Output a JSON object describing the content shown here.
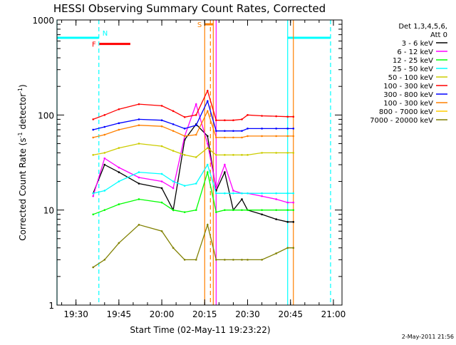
{
  "chart_data": {
    "type": "line",
    "title": "HESSI Observing Summary Count Rates, Corrected",
    "xlabel": "Start Time (02-May-11 19:23:22)",
    "ylabel": "Corrected Count Rate (s⁻¹ detector⁻¹)",
    "ylabel_main": "Corrected Count Rate (s",
    "ylabel_mid": " detector",
    "ylabel_end": ")",
    "ylabel_sup": "-1",
    "yscale": "log",
    "xlim": [
      "19:23:22",
      "21:03:00"
    ],
    "ylim": [
      1,
      1000
    ],
    "x_ticks": [
      "19:30",
      "19:45",
      "20:00",
      "20:15",
      "20:30",
      "20:45",
      "21:00"
    ],
    "y_ticks": [
      {
        "value": 1,
        "label": "1"
      },
      {
        "value": 10,
        "label": "10"
      },
      {
        "value": 100,
        "label": "100"
      },
      {
        "value": 1000,
        "label": "1000"
      }
    ],
    "legend_header": [
      "Det 1,3,4,5,6,",
      "Att 0"
    ],
    "legend_position": "right",
    "footer_date": "2-May-2011 21:56",
    "series": [
      {
        "name": "3 - 6 keV",
        "color": "#000000",
        "x": [
          "19:36",
          "19:40",
          "19:45",
          "19:52",
          "20:00",
          "20:04",
          "20:08",
          "20:12",
          "20:16",
          "20:19",
          "20:22",
          "20:25",
          "20:28",
          "20:30",
          "20:35",
          "20:40",
          "20:44",
          "20:46"
        ],
        "y": [
          15,
          30,
          25,
          19,
          17,
          10,
          55,
          80,
          60,
          16,
          25,
          10,
          13,
          10,
          9,
          8,
          7.5,
          7.5
        ]
      },
      {
        "name": "6 - 12 keV",
        "color": "#ff00ff",
        "x": [
          "19:36",
          "19:40",
          "19:45",
          "19:52",
          "20:00",
          "20:04",
          "20:08",
          "20:12",
          "20:16",
          "20:19",
          "20:22",
          "20:25",
          "20:28",
          "20:30",
          "20:35",
          "20:40",
          "20:44",
          "20:46"
        ],
        "y": [
          14,
          35,
          28,
          22,
          20,
          17,
          60,
          130,
          50,
          17,
          30,
          16,
          15,
          15,
          14,
          13,
          12,
          12
        ]
      },
      {
        "name": "12 - 25 keV",
        "color": "#00ff00",
        "x": [
          "19:36",
          "19:40",
          "19:45",
          "19:52",
          "20:00",
          "20:04",
          "20:08",
          "20:12",
          "20:16",
          "20:19",
          "20:22",
          "20:25",
          "20:28",
          "20:30",
          "20:35",
          "20:40",
          "20:44",
          "20:46"
        ],
        "y": [
          9,
          10,
          11.5,
          13,
          12,
          10,
          9.5,
          10,
          25,
          9.5,
          10,
          10,
          10,
          10,
          10,
          10,
          10,
          10
        ]
      },
      {
        "name": "25 - 50 keV",
        "color": "#00ffff",
        "x": [
          "19:36",
          "19:40",
          "19:45",
          "19:52",
          "20:00",
          "20:04",
          "20:08",
          "20:12",
          "20:16",
          "20:19",
          "20:22",
          "20:25",
          "20:28",
          "20:30",
          "20:35",
          "20:40",
          "20:44",
          "20:46"
        ],
        "y": [
          15,
          16,
          20,
          25,
          24,
          20,
          18,
          19,
          30,
          15,
          15,
          15,
          15,
          15,
          15,
          15,
          15,
          15
        ]
      },
      {
        "name": "50 - 100 keV",
        "color": "#cccc00",
        "x": [
          "19:36",
          "19:40",
          "19:45",
          "19:52",
          "20:00",
          "20:04",
          "20:08",
          "20:12",
          "20:16",
          "20:19",
          "20:22",
          "20:25",
          "20:28",
          "20:30",
          "20:35",
          "20:40",
          "20:44",
          "20:46"
        ],
        "y": [
          38,
          40,
          45,
          50,
          47,
          42,
          38,
          36,
          45,
          38,
          38,
          38,
          38,
          38,
          40,
          40,
          40,
          40
        ]
      },
      {
        "name": "100 - 300 keV",
        "color": "#ff0000",
        "x": [
          "19:36",
          "19:40",
          "19:45",
          "19:52",
          "20:00",
          "20:04",
          "20:08",
          "20:12",
          "20:16",
          "20:19",
          "20:22",
          "20:25",
          "20:28",
          "20:30",
          "20:35",
          "20:40",
          "20:44",
          "20:46"
        ],
        "y": [
          90,
          100,
          115,
          130,
          125,
          110,
          95,
          100,
          180,
          88,
          88,
          88,
          90,
          100,
          98,
          97,
          96,
          96
        ]
      },
      {
        "name": "300 - 800 keV",
        "color": "#0000ff",
        "x": [
          "19:36",
          "19:40",
          "19:45",
          "19:52",
          "20:00",
          "20:04",
          "20:08",
          "20:12",
          "20:16",
          "20:19",
          "20:22",
          "20:25",
          "20:28",
          "20:30",
          "20:35",
          "20:40",
          "20:44",
          "20:46"
        ],
        "y": [
          70,
          75,
          82,
          90,
          88,
          80,
          72,
          78,
          140,
          68,
          68,
          68,
          68,
          72,
          72,
          72,
          72,
          72
        ]
      },
      {
        "name": "100 - 300 keV",
        "color": "#ff8000",
        "x": [
          "19:36",
          "19:40",
          "19:45",
          "19:52",
          "20:00",
          "20:04",
          "20:08",
          "20:12",
          "20:16",
          "20:19",
          "20:22",
          "20:25",
          "20:28",
          "20:30",
          "20:35",
          "20:40",
          "20:44",
          "20:46"
        ],
        "y": [
          58,
          62,
          70,
          78,
          76,
          68,
          60,
          62,
          110,
          58,
          58,
          58,
          58,
          60,
          60,
          60,
          60,
          60
        ]
      },
      {
        "name": "800 - 7000 keV",
        "color": "#ffcc00",
        "x": [],
        "y": []
      },
      {
        "name": "7000 - 20000 keV",
        "color": "#808000",
        "x": [
          "19:36",
          "19:40",
          "19:45",
          "19:52",
          "20:00",
          "20:04",
          "20:08",
          "20:12",
          "20:16",
          "20:19",
          "20:22",
          "20:25",
          "20:28",
          "20:30",
          "20:35",
          "20:40",
          "20:44",
          "20:46"
        ],
        "y": [
          2.5,
          3,
          4.5,
          7,
          6,
          4,
          3,
          3,
          7,
          3,
          3,
          3,
          3,
          3,
          3,
          3.5,
          4,
          4
        ]
      }
    ],
    "markers": [
      {
        "type": "segment",
        "color": "#00ffff",
        "x_start": "19:23:22",
        "x_end": "19:38",
        "y": 650
      },
      {
        "type": "segment",
        "color": "#00ffff",
        "x_start": "20:44",
        "x_end": "20:59",
        "y": 650
      },
      {
        "type": "segment",
        "color": "#ff0000",
        "x_start": "19:38",
        "x_end": "19:49",
        "y": 560,
        "label": "F"
      },
      {
        "type": "segment",
        "color": "#ff8000",
        "x_start": "20:15",
        "x_end": "20:18",
        "y": 900,
        "label": "S"
      },
      {
        "type": "vline_solid",
        "color": "#00ffff",
        "x": "19:23:22"
      },
      {
        "type": "vline_dashed",
        "color": "#00ffff",
        "x": "19:38",
        "label": "N"
      },
      {
        "type": "vline_solid",
        "color": "#00ffff",
        "x": "20:44"
      },
      {
        "type": "vline_dashed",
        "color": "#00ffff",
        "x": "20:59"
      },
      {
        "type": "vline_solid",
        "color": "#ff8000",
        "x": "20:15"
      },
      {
        "type": "vline_dashed",
        "color": "#ff8000",
        "x": "20:17"
      },
      {
        "type": "vline_solid",
        "color": "#ff8000",
        "x": "20:18"
      },
      {
        "type": "vline_solid",
        "color": "#ff8000",
        "x": "20:46"
      },
      {
        "type": "vline_solid",
        "color": "#ff00ff",
        "x": "20:19"
      }
    ]
  }
}
